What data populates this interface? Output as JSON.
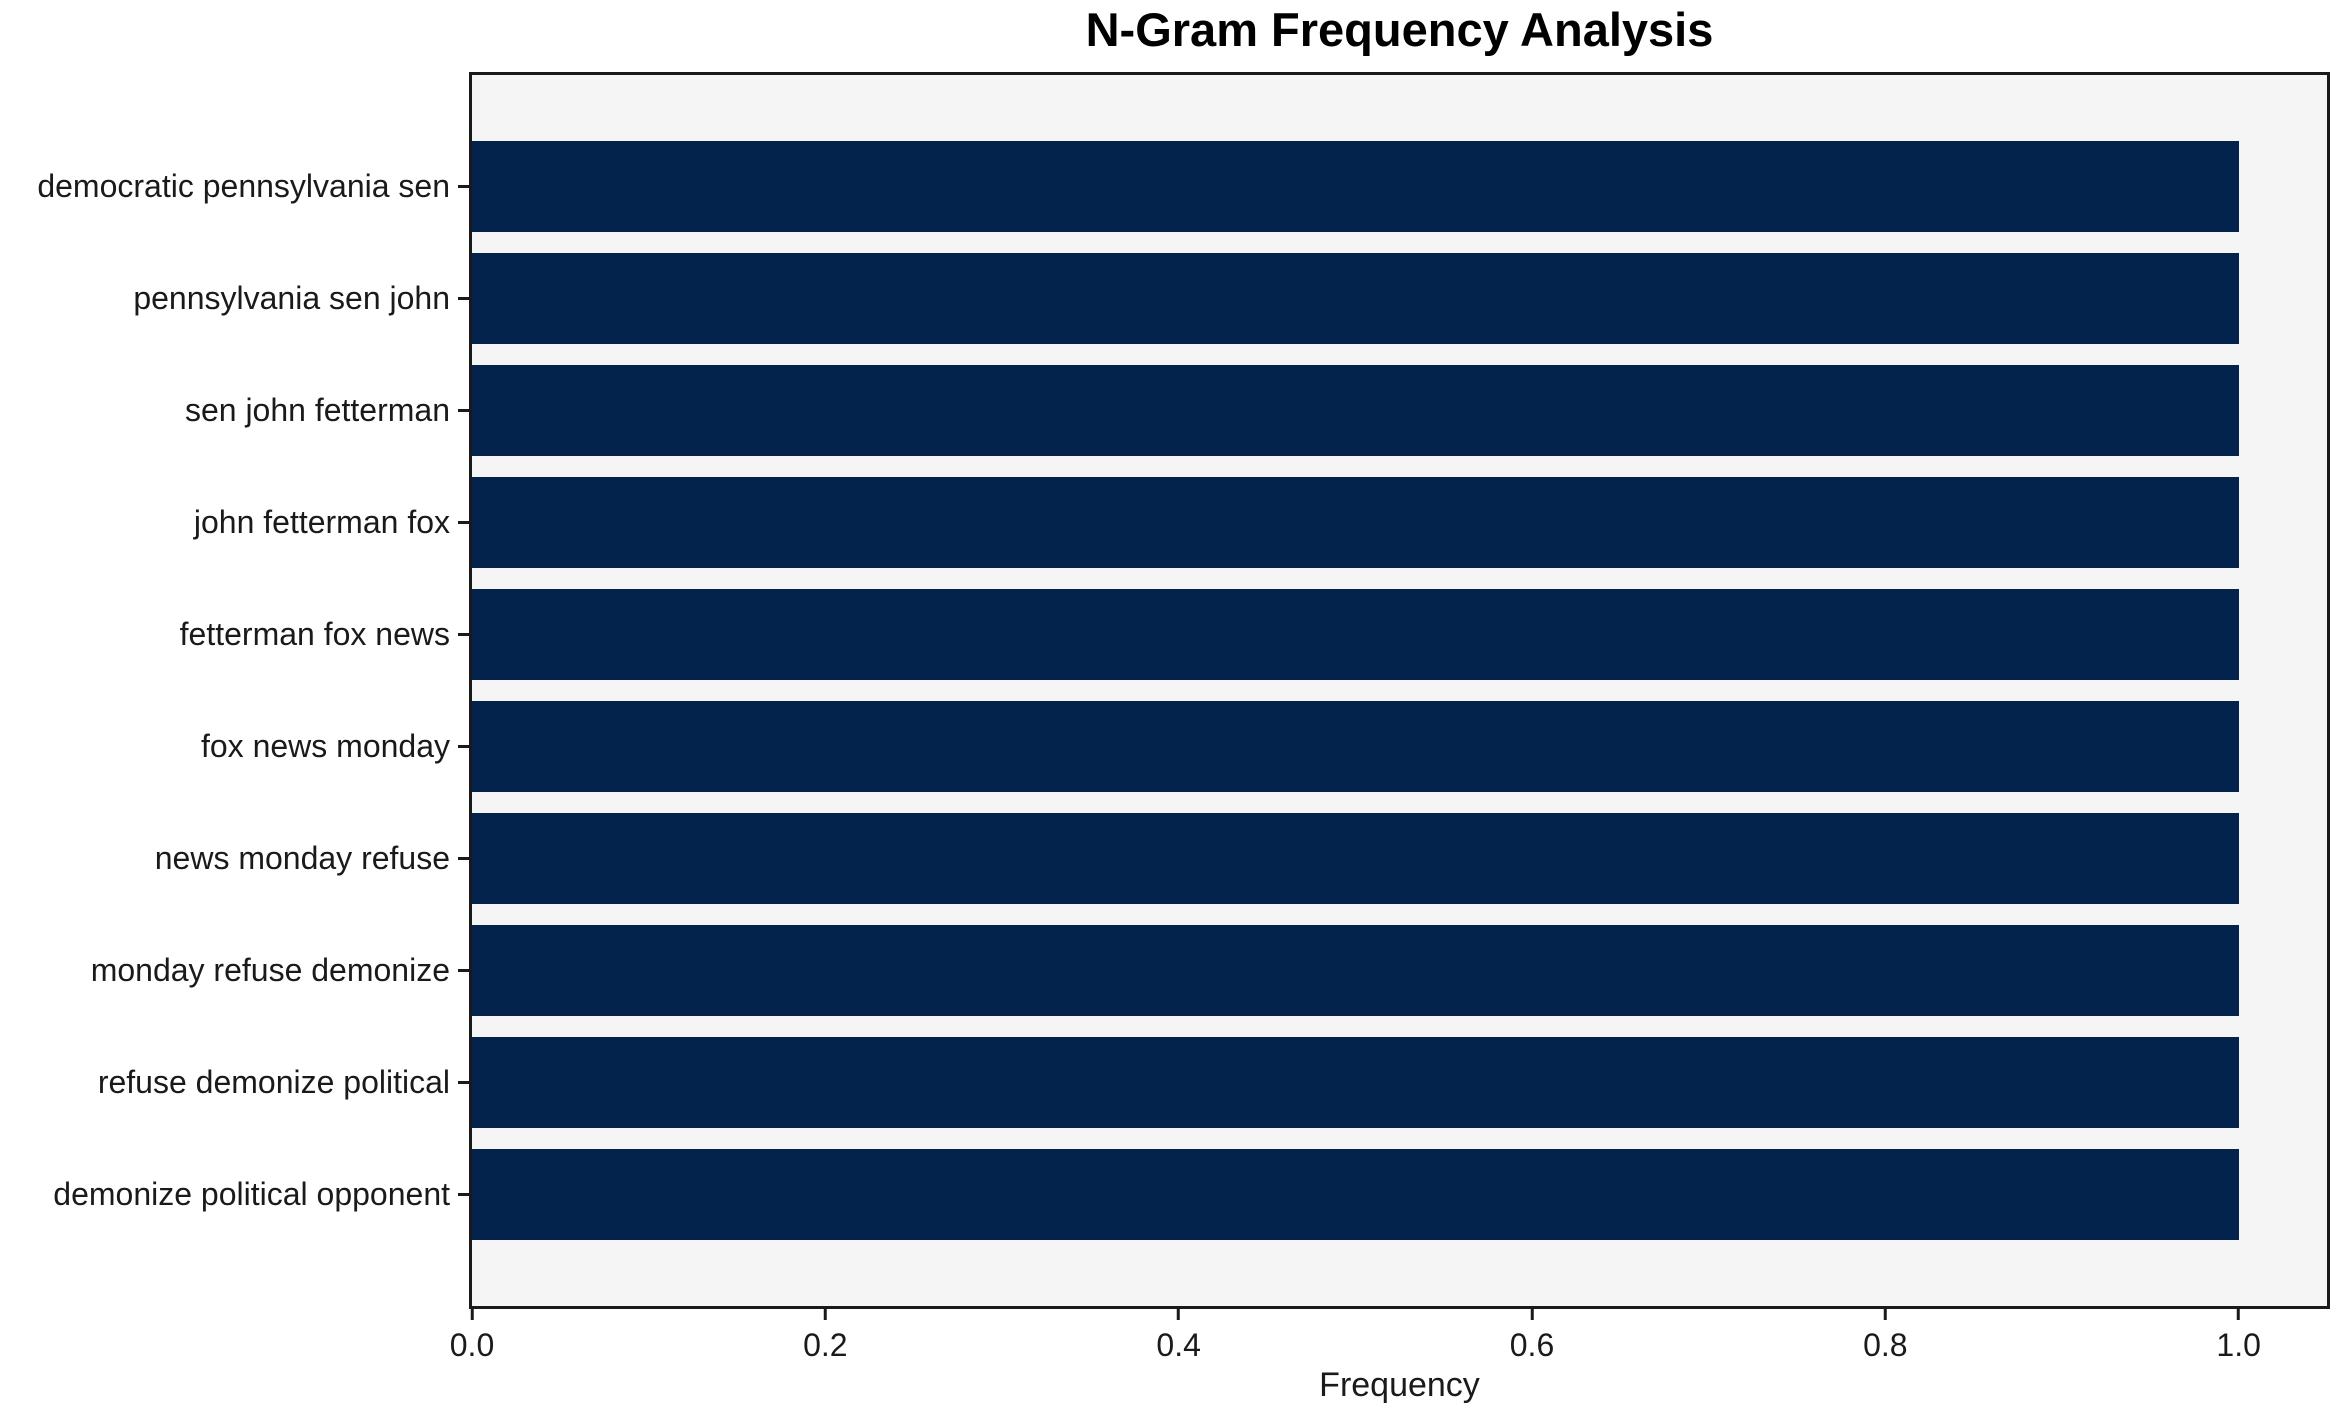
{
  "chart_data": {
    "type": "bar",
    "orientation": "horizontal",
    "title": "N-Gram Frequency Analysis",
    "xlabel": "Frequency",
    "ylabel": "",
    "categories": [
      "democratic pennsylvania sen",
      "pennsylvania sen john",
      "sen john fetterman",
      "john fetterman fox",
      "fetterman fox news",
      "fox news monday",
      "news monday refuse",
      "monday refuse demonize",
      "refuse demonize political",
      "demonize political opponent"
    ],
    "values": [
      1.0,
      1.0,
      1.0,
      1.0,
      1.0,
      1.0,
      1.0,
      1.0,
      1.0,
      1.0
    ],
    "xlim": [
      0,
      1.05
    ],
    "xticks": [
      0.0,
      0.2,
      0.4,
      0.6,
      0.8,
      1.0
    ],
    "xtick_labels": [
      "0.0",
      "0.2",
      "0.4",
      "0.6",
      "0.8",
      "1.0"
    ],
    "grid": false,
    "bar_color": "#03234d",
    "plot_background": "#f5f5f6",
    "figure_background": "#ffffff",
    "spine_color": "#1a1a1a"
  }
}
